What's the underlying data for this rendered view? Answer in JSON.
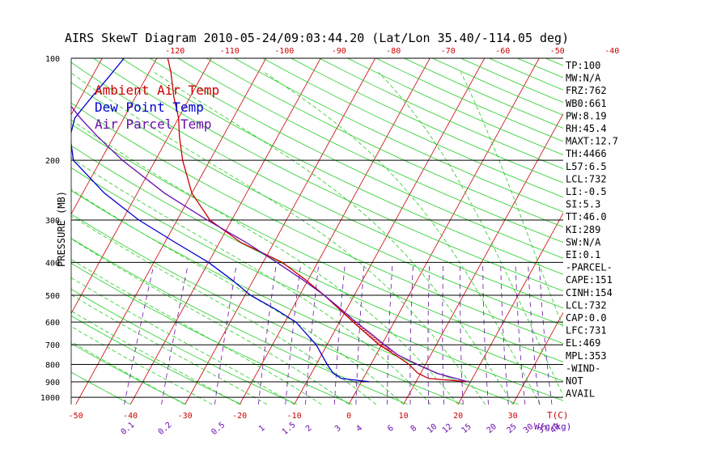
{
  "chart_data": {
    "type": "line",
    "title": "AIRS SkewT Diagram 2010-05-24/09:03:44.20 (Lat/Lon 35.40/-114.05 deg)",
    "ylabel": "PRESSURE (MB)",
    "xlabel": "T(C)",
    "mixing_label": "W(g/kg)",
    "y_scale": "log",
    "ylim": [
      1050,
      100
    ],
    "pressure_ticks": [
      100,
      200,
      300,
      400,
      500,
      600,
      700,
      800,
      900,
      1000
    ],
    "bottom_temp_ticks": [
      -50,
      -40,
      -30,
      -20,
      -10,
      0,
      10,
      20,
      30
    ],
    "top_temp_ticks": [
      -120,
      -110,
      -100,
      -90,
      -80,
      -70,
      -60,
      -50,
      -40
    ],
    "mixing_ratio_ticks": [
      "0.1",
      "0.2",
      "0.5",
      "1",
      "1.5",
      "2",
      "3",
      "4",
      "6",
      "8",
      "10",
      "12",
      "15",
      "20",
      "25",
      "30",
      "35",
      "40"
    ],
    "legend": [
      {
        "name": "Ambient Air Temp",
        "color": "#cc0000"
      },
      {
        "name": "Dew Point Temp",
        "color": "#0000cc"
      },
      {
        "name": "Air Parcel Temp",
        "color": "#6a0dad"
      }
    ],
    "series": [
      {
        "name": "Ambient Air Temp",
        "color": "#cc0000",
        "points": [
          {
            "p": 900,
            "t": 19.5
          },
          {
            "p": 880,
            "t": 12
          },
          {
            "p": 850,
            "t": 9.5
          },
          {
            "p": 800,
            "t": 7
          },
          {
            "p": 750,
            "t": 3.5
          },
          {
            "p": 700,
            "t": -0.5
          },
          {
            "p": 600,
            "t": -7.5
          },
          {
            "p": 500,
            "t": -15.5
          },
          {
            "p": 450,
            "t": -20.5
          },
          {
            "p": 400,
            "t": -26.5
          },
          {
            "p": 350,
            "t": -36
          },
          {
            "p": 300,
            "t": -44
          },
          {
            "p": 250,
            "t": -50
          },
          {
            "p": 200,
            "t": -55
          },
          {
            "p": 170,
            "t": -58
          },
          {
            "p": 150,
            "t": -60
          },
          {
            "p": 130,
            "t": -63
          },
          {
            "p": 110,
            "t": -66
          },
          {
            "p": 100,
            "t": -68
          }
        ]
      },
      {
        "name": "Dew Point Temp",
        "color": "#0000cc",
        "points": [
          {
            "p": 900,
            "t": 1.5
          },
          {
            "p": 880,
            "t": -4
          },
          {
            "p": 850,
            "t": -6
          },
          {
            "p": 800,
            "t": -8
          },
          {
            "p": 700,
            "t": -12
          },
          {
            "p": 600,
            "t": -18
          },
          {
            "p": 550,
            "t": -23
          },
          {
            "p": 500,
            "t": -29
          },
          {
            "p": 450,
            "t": -34
          },
          {
            "p": 400,
            "t": -40
          },
          {
            "p": 350,
            "t": -48
          },
          {
            "p": 300,
            "t": -57
          },
          {
            "p": 250,
            "t": -66
          },
          {
            "p": 200,
            "t": -75
          },
          {
            "p": 170,
            "t": -78
          },
          {
            "p": 150,
            "t": -79
          },
          {
            "p": 130,
            "t": -78
          },
          {
            "p": 115,
            "t": -77
          },
          {
            "p": 100,
            "t": -76
          }
        ]
      },
      {
        "name": "Air Parcel Temp",
        "color": "#6a0dad",
        "points": [
          {
            "p": 900,
            "t": 19.5
          },
          {
            "p": 850,
            "t": 13
          },
          {
            "p": 800,
            "t": 8.5
          },
          {
            "p": 750,
            "t": 4
          },
          {
            "p": 700,
            "t": 0.5
          },
          {
            "p": 650,
            "t": -3
          },
          {
            "p": 600,
            "t": -7
          },
          {
            "p": 550,
            "t": -11
          },
          {
            "p": 500,
            "t": -15.5
          },
          {
            "p": 450,
            "t": -21
          },
          {
            "p": 400,
            "t": -27.5
          },
          {
            "p": 350,
            "t": -35
          },
          {
            "p": 300,
            "t": -44.5
          },
          {
            "p": 250,
            "t": -55
          },
          {
            "p": 200,
            "t": -66
          },
          {
            "p": 170,
            "t": -73
          },
          {
            "p": 150,
            "t": -78
          },
          {
            "p": 120,
            "t": -86
          },
          {
            "p": 100,
            "t": -92
          }
        ]
      }
    ],
    "cape_shading": {
      "p_bottom": 731,
      "p_top": 469
    }
  },
  "indices": [
    "TP:100",
    "MW:N/A",
    "FRZ:762",
    "WB0:661",
    "PW:8.19",
    "RH:45.4",
    "MAXT:12.7",
    "TH:4466",
    "L57:6.5",
    "LCL:732",
    "LI:-0.5",
    "SI:5.3",
    "TT:46.0",
    "KI:289",
    "SW:N/A",
    "EI:0.1",
    "-PARCEL-",
    "CAPE:151",
    "CINH:154",
    "LCL:732",
    "CAP:0.0",
    "LFC:731",
    "EL:469",
    "MPL:353",
    "-WIND-",
    "NOT",
    "AVAIL"
  ]
}
